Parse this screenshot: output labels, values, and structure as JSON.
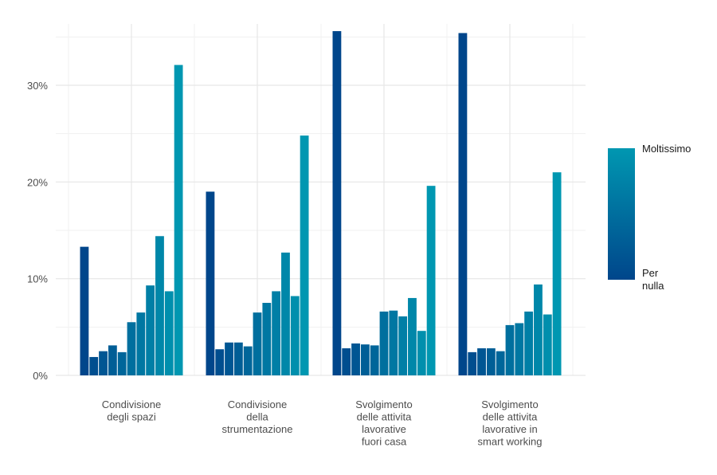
{
  "chart_data": {
    "type": "bar",
    "title": "",
    "xlabel": "",
    "ylabel": "",
    "ylim": [
      0,
      0.36
    ],
    "y_ticks": [
      0,
      0.1,
      0.2,
      0.3
    ],
    "y_tick_labels": [
      "0%",
      "10%",
      "20%",
      "30%"
    ],
    "grid": true,
    "legend_position": "right",
    "categories": [
      {
        "lines": [
          "Condivisione",
          "degli spazi"
        ]
      },
      {
        "lines": [
          "Condivisione",
          "della",
          "strumentazione"
        ]
      },
      {
        "lines": [
          "Svolgimento",
          "delle attivita",
          "lavorative",
          "fuori casa"
        ]
      },
      {
        "lines": [
          "Svolgimento",
          "delle attivita",
          "lavorative in",
          "smart working"
        ]
      }
    ],
    "levels": 11,
    "color_low": "#00468b",
    "color_high": "#0097b1",
    "series_by_category": [
      [
        0.133,
        0.019,
        0.025,
        0.031,
        0.024,
        0.055,
        0.065,
        0.093,
        0.144,
        0.087,
        0.321
      ],
      [
        0.19,
        0.027,
        0.034,
        0.034,
        0.03,
        0.065,
        0.075,
        0.087,
        0.127,
        0.082,
        0.248
      ],
      [
        0.356,
        0.028,
        0.033,
        0.032,
        0.031,
        0.066,
        0.067,
        0.061,
        0.08,
        0.046,
        0.196
      ],
      [
        0.354,
        0.024,
        0.028,
        0.028,
        0.025,
        0.052,
        0.054,
        0.066,
        0.094,
        0.063,
        0.21
      ]
    ],
    "legend": {
      "high_label": "Moltissimo",
      "low_label_lines": [
        "Per",
        "nulla"
      ]
    }
  }
}
